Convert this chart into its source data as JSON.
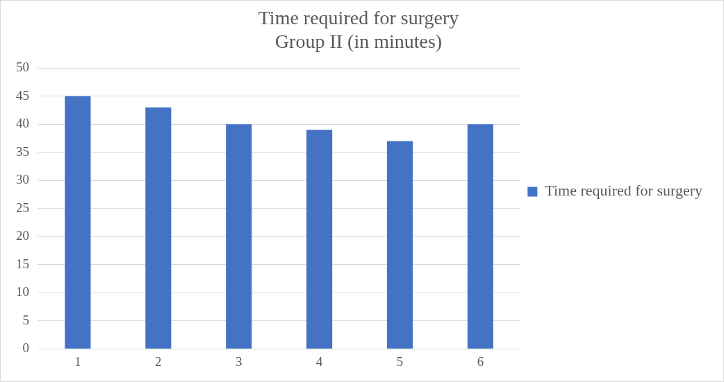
{
  "chart_data": {
    "type": "bar",
    "title": "Time required for surgery\nGroup II (in minutes)",
    "categories": [
      "1",
      "2",
      "3",
      "4",
      "5",
      "6"
    ],
    "series": [
      {
        "name": "Time required for surgery",
        "color": "#4472c4",
        "values": [
          45,
          43,
          40,
          39,
          37,
          40
        ]
      }
    ],
    "ylim": [
      0,
      50
    ],
    "yticks": [
      0,
      5,
      10,
      15,
      20,
      25,
      30,
      35,
      40,
      45,
      50
    ],
    "grid": "y",
    "legend": "right"
  }
}
